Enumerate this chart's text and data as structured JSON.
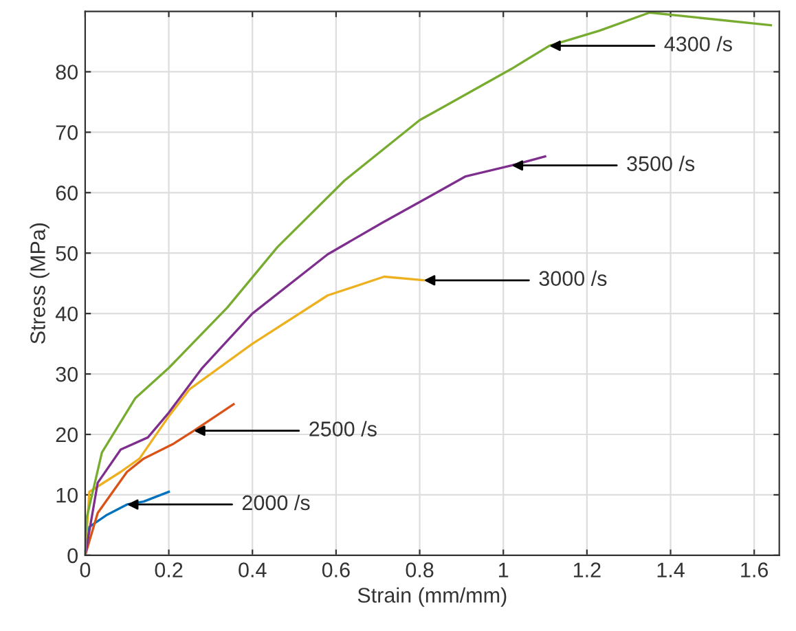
{
  "chart_data": {
    "type": "line",
    "xlabel": "Strain (mm/mm)",
    "ylabel": "Stress (MPa)",
    "xlim": [
      0,
      1.66
    ],
    "ylim": [
      0,
      90
    ],
    "xticks": [
      0,
      0.2,
      0.4,
      0.6,
      0.8,
      1,
      1.2,
      1.4,
      1.6
    ],
    "yticks": [
      0,
      10,
      20,
      30,
      40,
      50,
      60,
      70,
      80
    ],
    "grid": true,
    "legend": false,
    "line_style": "solid",
    "marker": "none",
    "series": [
      {
        "color": "#0072bd",
        "x": [
          0,
          0.01,
          0.05,
          0.1,
          0.14,
          0.2
        ],
        "values": [
          0,
          4.7,
          6.6,
          8.4,
          8.9,
          10.5
        ]
      },
      {
        "color": "#d95319",
        "x": [
          0,
          0.03,
          0.1,
          0.14,
          0.21,
          0.26,
          0.355
        ],
        "values": [
          0,
          7,
          13.8,
          16,
          18.4,
          20.6,
          25
        ]
      },
      {
        "color": "#edb120",
        "x": [
          0,
          0.01,
          0.085,
          0.13,
          0.2,
          0.25,
          0.4,
          0.58,
          0.715,
          0.81
        ],
        "values": [
          0,
          10.5,
          13.8,
          16,
          23,
          27.5,
          35,
          43,
          46.1,
          45.5
        ]
      },
      {
        "color": "#7e2f8e",
        "x": [
          0,
          0.03,
          0.085,
          0.15,
          0.2,
          0.28,
          0.4,
          0.58,
          0.71,
          0.83,
          0.91,
          1.02,
          1.1
        ],
        "values": [
          0,
          12,
          17.5,
          19.5,
          23.6,
          31,
          40,
          49.8,
          55,
          59.6,
          62.7,
          64.5,
          66
        ]
      },
      {
        "color": "#77ac30",
        "x": [
          0,
          0.003,
          0.04,
          0.12,
          0.2,
          0.34,
          0.46,
          0.62,
          0.8,
          0.86,
          1.02,
          1.11,
          1.23,
          1.35,
          1.64
        ],
        "values": [
          0,
          6,
          17,
          26,
          31,
          41,
          51,
          62,
          72,
          74.3,
          80.5,
          84.3,
          86.8,
          89.8,
          87.7
        ]
      }
    ],
    "annotations": [
      {
        "text": "2000 /s",
        "x": 0.1,
        "y": 8.4
      },
      {
        "text": "2500 /s",
        "x": 0.26,
        "y": 20.6
      },
      {
        "text": "3000 /s",
        "x": 0.81,
        "y": 45.5
      },
      {
        "text": "3500 /s",
        "x": 1.02,
        "y": 64.5
      },
      {
        "text": "4300 /s",
        "x": 1.11,
        "y": 84.3
      }
    ]
  }
}
